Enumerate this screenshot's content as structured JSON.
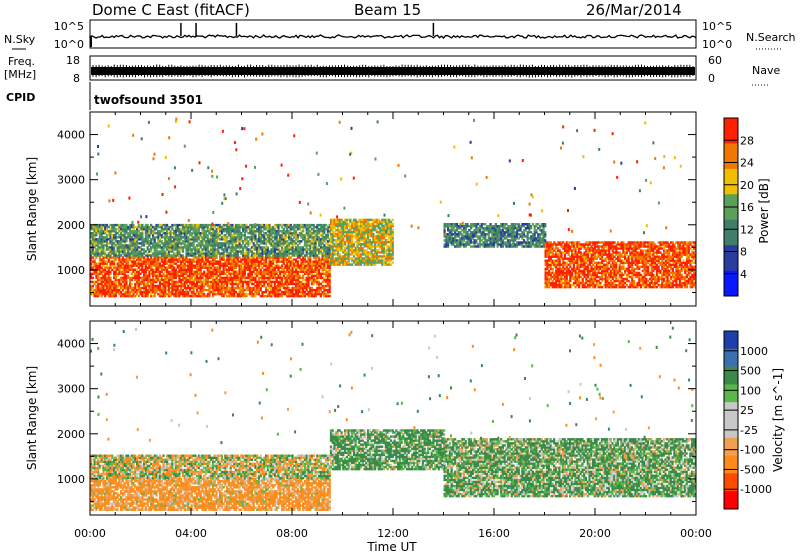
{
  "header": {
    "station": "Dome C East (fitACF)",
    "beam": "Beam 15",
    "date": "26/Mar/2014"
  },
  "stat_panels": {
    "nsky_label": "N.Sky",
    "nsearch_label": "N.Search",
    "noise_ticks_left": [
      "10^5",
      "10^0"
    ],
    "noise_ticks_right": [
      "10^5",
      "10^0"
    ],
    "freq_label_1": "Freq.",
    "freq_label_2": "[MHz]",
    "freq_ticks": [
      "18",
      "8"
    ],
    "nave_label": "Nave",
    "nave_ticks": [
      "60",
      "0"
    ],
    "cpid_label": "CPID",
    "cpid_value": "twofsound 3501"
  },
  "colors": {
    "power_scale": [
      "#0a18ff",
      "#2a3c9c",
      "#3f7f6a",
      "#5aa05a",
      "#f0c000",
      "#f07800",
      "#ff2000"
    ],
    "velocity_scale": [
      "#ff0000",
      "#ff4a00",
      "#ff8c1a",
      "#f0a050",
      "#c8c8c8",
      "#c8c8c8",
      "#58b848",
      "#3a8a4a",
      "#3a6fb0",
      "#1c3fa8"
    ]
  },
  "chart_data": [
    {
      "type": "heatmap",
      "title": "",
      "ylabel": "Slant Range [km]",
      "xlabel": "",
      "xlim": [
        "00:00",
        "24:00"
      ],
      "ylim": [
        200,
        4500
      ],
      "yticks": [
        "1000",
        "2000",
        "3000",
        "4000"
      ],
      "colorbar_label": "Power [dB]",
      "colorbar_ticks": [
        "4",
        "8",
        "12",
        "16",
        "20",
        "24",
        "28"
      ],
      "colorbar_range": [
        0,
        32
      ],
      "echo_regions": [
        {
          "t_start": 0,
          "t_end": 9.5,
          "range_low": 400,
          "range_high": 1300,
          "power_db": 28
        },
        {
          "t_start": 0,
          "t_end": 9.5,
          "range_low": 1300,
          "range_high": 2000,
          "power_db": 14
        },
        {
          "t_start": 9.5,
          "t_end": 12,
          "range_low": 1100,
          "range_high": 2100,
          "power_db": 20
        },
        {
          "t_start": 14,
          "t_end": 18,
          "range_low": 1500,
          "range_high": 2000,
          "power_db": 12
        },
        {
          "t_start": 18,
          "t_end": 24,
          "range_low": 600,
          "range_high": 1600,
          "power_db": 28
        }
      ]
    },
    {
      "type": "heatmap",
      "title": "",
      "ylabel": "Slant Range [km]",
      "xlabel": "Time UT",
      "xlim": [
        "00:00",
        "24:00"
      ],
      "ylim": [
        200,
        4500
      ],
      "xticks": [
        "00:00",
        "04:00",
        "08:00",
        "12:00",
        "16:00",
        "20:00",
        "00:00"
      ],
      "yticks": [
        "1000",
        "2000",
        "3000",
        "4000"
      ],
      "colorbar_label": "Velocity [m s^-1]",
      "colorbar_ticks": [
        "1000",
        "500",
        "100",
        "25",
        "-25",
        "-100",
        "-500",
        "-1000"
      ],
      "echo_regions": [
        {
          "t_start": 0,
          "t_end": 9.5,
          "range_low": 300,
          "range_high": 1000,
          "velocity_ms": -150
        },
        {
          "t_start": 0,
          "t_end": 9.5,
          "range_low": 1000,
          "range_high": 1500,
          "velocity_ms": 0
        },
        {
          "t_start": 9.5,
          "t_end": 14,
          "range_low": 1200,
          "range_high": 2100,
          "velocity_ms": 150
        },
        {
          "t_start": 14,
          "t_end": 24,
          "range_low": 600,
          "range_high": 1900,
          "velocity_ms": 120
        }
      ]
    }
  ]
}
